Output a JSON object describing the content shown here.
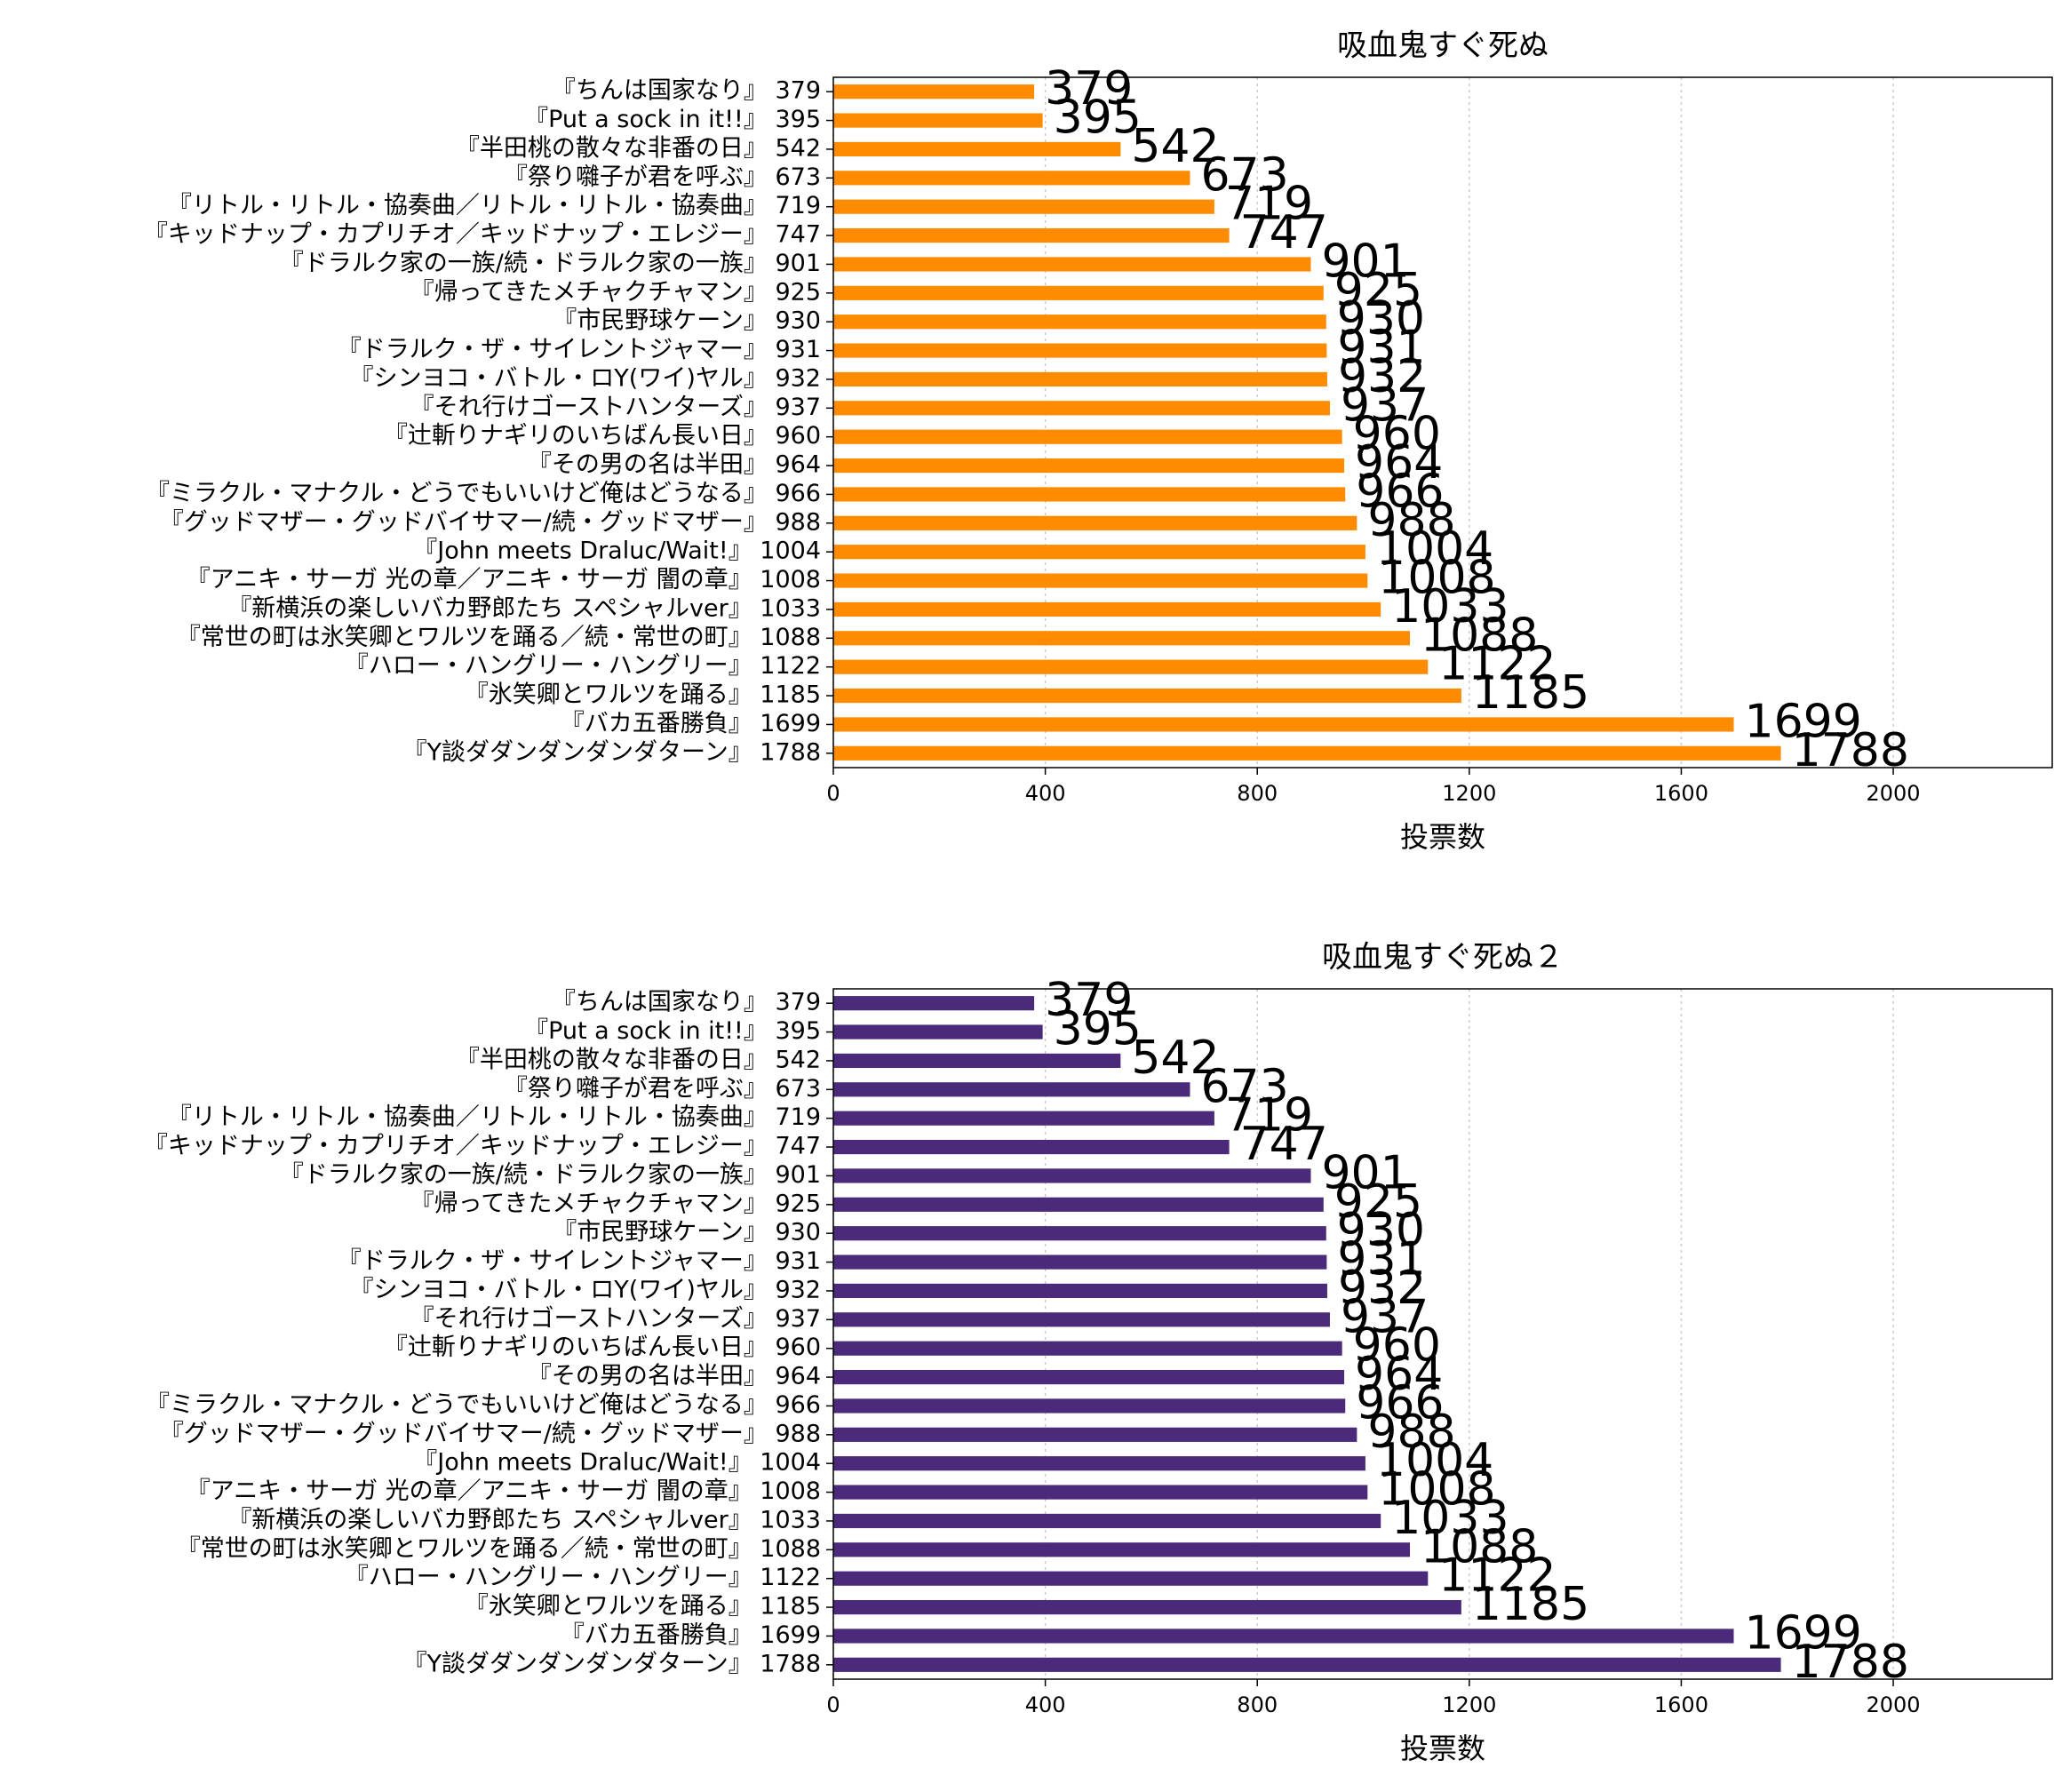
{
  "chart_data": [
    {
      "type": "barh",
      "title": "吸血鬼すぐ死ぬ",
      "xlabel": "投票数",
      "categories": [
        "『ちんは国家なり』 379",
        "『Put a sock in it!!』 395",
        "『半田桃の散々な非番の日』 542",
        "『祭り囃子が君を呼ぶ』 673",
        "『リトル・リトル・協奏曲／リトル・リトル・協奏曲』 719",
        "『キッドナップ・カプリチオ／キッドナップ・エレジー』 747",
        "『ドラルク家の一族/続・ドラルク家の一族』 901",
        "『帰ってきたメチャクチャマン』 925",
        "『市民野球ケーン』 930",
        "『ドラルク・ザ・サイレントジャマー』 931",
        "『シンヨコ・バトル・ロY(ワイ)ヤル』 932",
        "『それ行けゴーストハンターズ』 937",
        "『辻斬りナギリのいちばん長い日』 960",
        "『その男の名は半田』 964",
        "『ミラクル・マナクル・どうでもいいけど俺はどうなる』 966",
        "『グッドマザー・グッドバイサマー/続・グッドマザー』 988",
        "『John meets Draluc/Wait!』 1004",
        "『アニキ・サーガ 光の章／アニキ・サーガ 闇の章』 1008",
        "『新横浜の楽しいバカ野郎たち スペシャルver』 1033",
        "『常世の町は氷笑卿とワルツを踊る／続・常世の町』 1088",
        "『ハロー・ハングリー・ハングリー』 1122",
        "『氷笑卿とワルツを踊る』 1185",
        "『バカ五番勝負』 1699",
        "『Y談ダダンダンダンダターン』 1788"
      ],
      "values": [
        379,
        395,
        542,
        673,
        719,
        747,
        901,
        925,
        930,
        931,
        932,
        937,
        960,
        964,
        966,
        988,
        1004,
        1008,
        1033,
        1088,
        1122,
        1185,
        1699,
        1788
      ],
      "color": "#ff8c00",
      "xlim": [
        0,
        2300
      ],
      "xticks": [
        0,
        400,
        800,
        1200,
        1600,
        2000
      ],
      "grid": true
    },
    {
      "type": "barh",
      "title": "吸血鬼すぐ死ぬ２",
      "xlabel": "投票数",
      "categories": [
        "『ちんは国家なり』 379",
        "『Put a sock in it!!』 395",
        "『半田桃の散々な非番の日』 542",
        "『祭り囃子が君を呼ぶ』 673",
        "『リトル・リトル・協奏曲／リトル・リトル・協奏曲』 719",
        "『キッドナップ・カプリチオ／キッドナップ・エレジー』 747",
        "『ドラルク家の一族/続・ドラルク家の一族』 901",
        "『帰ってきたメチャクチャマン』 925",
        "『市民野球ケーン』 930",
        "『ドラルク・ザ・サイレントジャマー』 931",
        "『シンヨコ・バトル・ロY(ワイ)ヤル』 932",
        "『それ行けゴーストハンターズ』 937",
        "『辻斬りナギリのいちばん長い日』 960",
        "『その男の名は半田』 964",
        "『ミラクル・マナクル・どうでもいいけど俺はどうなる』 966",
        "『グッドマザー・グッドバイサマー/続・グッドマザー』 988",
        "『John meets Draluc/Wait!』 1004",
        "『アニキ・サーガ 光の章／アニキ・サーガ 闇の章』 1008",
        "『新横浜の楽しいバカ野郎たち スペシャルver』 1033",
        "『常世の町は氷笑卿とワルツを踊る／続・常世の町』 1088",
        "『ハロー・ハングリー・ハングリー』 1122",
        "『氷笑卿とワルツを踊る』 1185",
        "『バカ五番勝負』 1699",
        "『Y談ダダンダンダンダターン』 1788"
      ],
      "values": [
        379,
        395,
        542,
        673,
        719,
        747,
        901,
        925,
        930,
        931,
        932,
        937,
        960,
        964,
        966,
        988,
        1004,
        1008,
        1033,
        1088,
        1122,
        1185,
        1699,
        1788
      ],
      "color": "#4b2a7b",
      "xlim": [
        0,
        2300
      ],
      "xticks": [
        0,
        400,
        800,
        1200,
        1600,
        2000
      ],
      "grid": true
    }
  ]
}
